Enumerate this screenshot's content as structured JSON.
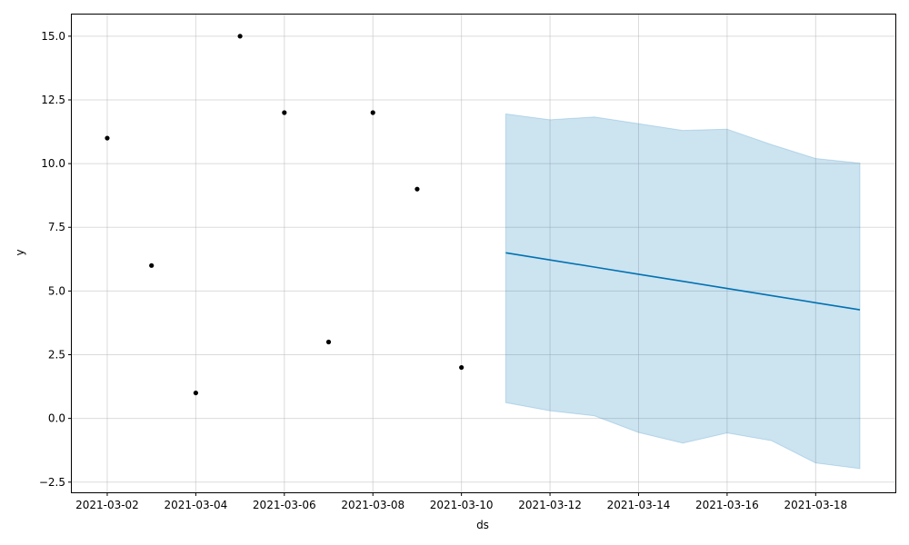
{
  "chart_data": {
    "type": "line",
    "title": "",
    "xlabel": "ds",
    "ylabel": "y",
    "x_axis_type": "date",
    "xlim": [
      "2021-03-01T04:48",
      "2021-03-19T19:12"
    ],
    "ylim": [
      -2.9,
      15.85
    ],
    "grid": true,
    "x_ticks": [
      "2021-03-02",
      "2021-03-04",
      "2021-03-06",
      "2021-03-08",
      "2021-03-10",
      "2021-03-12",
      "2021-03-14",
      "2021-03-16",
      "2021-03-18"
    ],
    "y_ticks": [
      -2.5,
      0.0,
      2.5,
      5.0,
      7.5,
      10.0,
      12.5,
      15.0
    ],
    "y_tick_labels": [
      "−2.5",
      "0.0",
      "2.5",
      "5.0",
      "7.5",
      "10.0",
      "12.5",
      "15.0"
    ],
    "observed": {
      "color": "#000000",
      "x": [
        "2021-03-02",
        "2021-03-03",
        "2021-03-04",
        "2021-03-05",
        "2021-03-06",
        "2021-03-07",
        "2021-03-08",
        "2021-03-09",
        "2021-03-10"
      ],
      "y": [
        11,
        6,
        1,
        15,
        12,
        3,
        12,
        9,
        2
      ]
    },
    "forecast": {
      "color": "#0072B2",
      "x": [
        "2021-03-11",
        "2021-03-12",
        "2021-03-13",
        "2021-03-14",
        "2021-03-15",
        "2021-03-16",
        "2021-03-17",
        "2021-03-18",
        "2021-03-19"
      ],
      "y": [
        6.5,
        6.22,
        5.94,
        5.66,
        5.38,
        5.1,
        4.82,
        4.54,
        4.26
      ],
      "y_upper": [
        11.95,
        11.72,
        11.83,
        11.57,
        11.3,
        11.35,
        10.75,
        10.2,
        10.02
      ],
      "y_lower": [
        0.62,
        0.3,
        0.1,
        -0.55,
        -0.97,
        -0.57,
        -0.87,
        -1.75,
        -1.97
      ],
      "band_color": "#0072B2"
    }
  }
}
